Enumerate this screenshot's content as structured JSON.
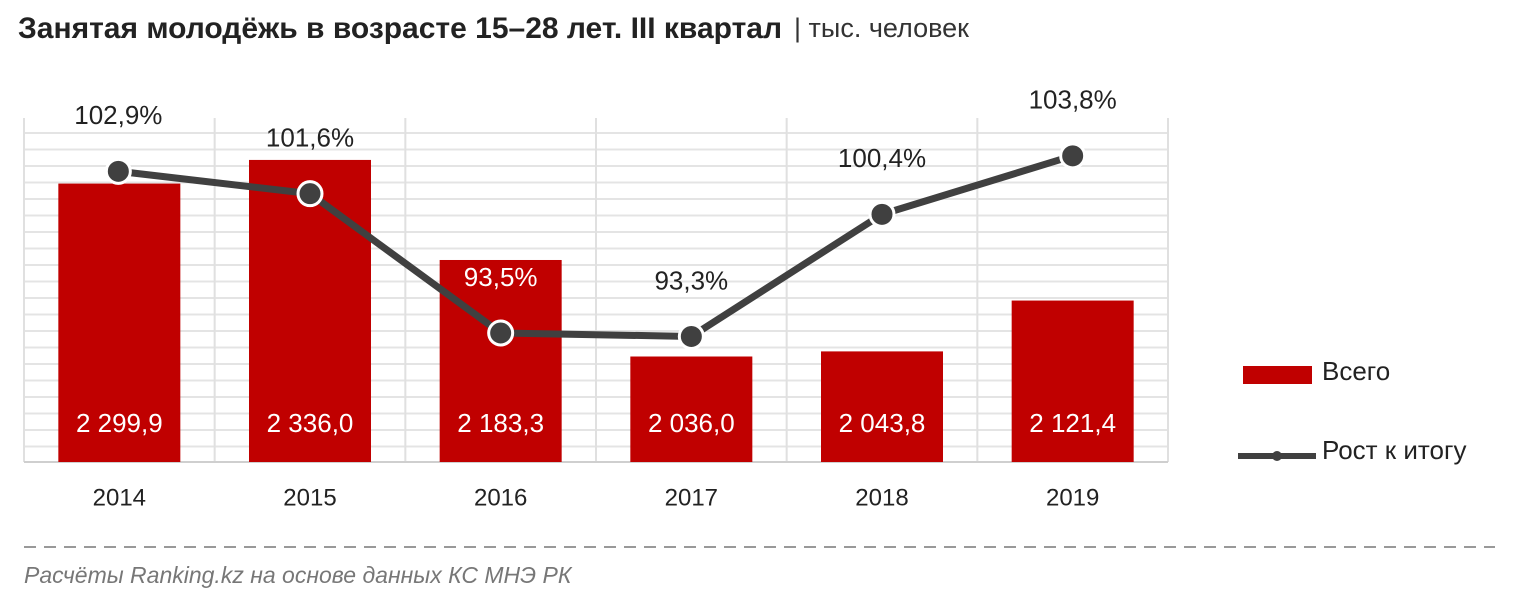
{
  "chart_data": {
    "type": "bar-line",
    "title": "Занятая молодёжь в возрасте 15–28 лет. III квартал",
    "subtitle": "| тыс. человек",
    "categories": [
      "2014",
      "2015",
      "2016",
      "2017",
      "2018",
      "2019"
    ],
    "series": [
      {
        "name": "Всего",
        "type": "bar",
        "color": "#c00000",
        "values": [
          2299.9,
          2336.0,
          2183.3,
          2036.0,
          2043.8,
          2121.4
        ],
        "value_labels": [
          "2 299,9",
          "2 336,0",
          "2 183,3",
          "2 036,0",
          "2 043,8",
          "2 121,4"
        ]
      },
      {
        "name": "Рост к итогу",
        "type": "line",
        "axis": "y2",
        "color": "#404040",
        "values": [
          102.9,
          101.6,
          93.5,
          93.3,
          100.4,
          103.8
        ],
        "value_labels": [
          "102,9%",
          "101,6%",
          "93,5%",
          "93,3%",
          "100,4%",
          "103,8%"
        ]
      }
    ],
    "ylim": [
      1875,
      2400
    ],
    "y2lim": [
      86,
      106
    ],
    "source": "Расчёты Ranking.kz на основе данных КС МНЭ РК"
  }
}
